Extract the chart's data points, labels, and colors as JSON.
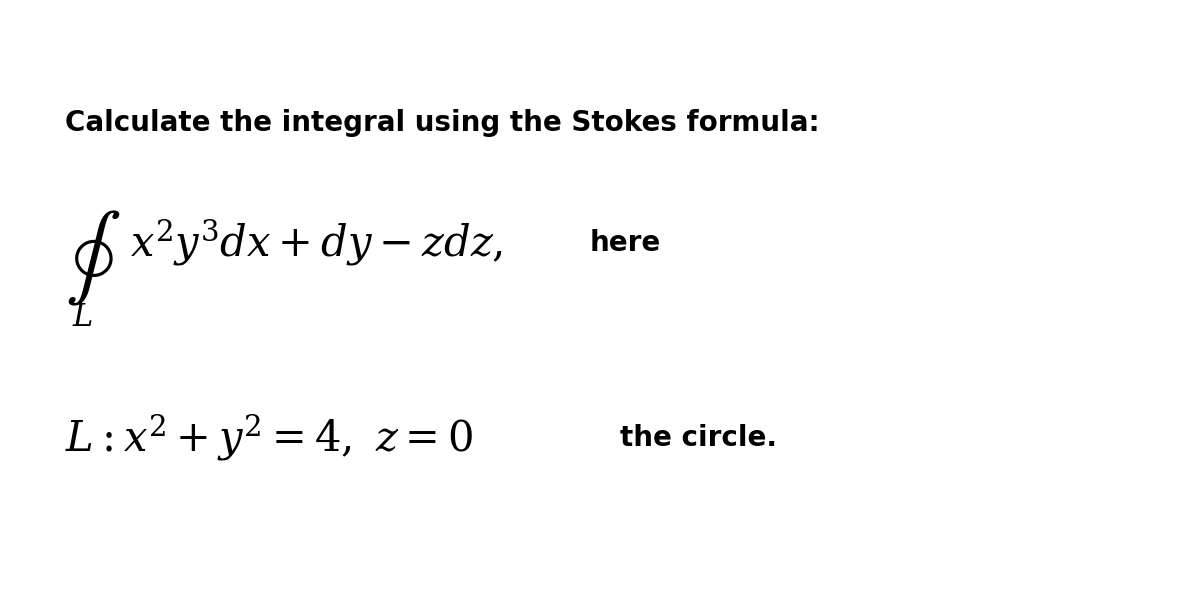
{
  "background_color": "#ffffff",
  "title_text": "Calculate the integral using the Stokes formula:",
  "title_fontsize": 20,
  "title_fontweight": "bold",
  "title_color": "#000000",
  "integral_fontsize": 30,
  "here_fontsize": 20,
  "here_fontweight": "bold",
  "L_label_fontsize": 22,
  "condition_fontsize": 30,
  "circle_fontsize": 20,
  "circle_fontweight": "bold",
  "figsize": [
    12.0,
    6.13
  ],
  "dpi": 100
}
